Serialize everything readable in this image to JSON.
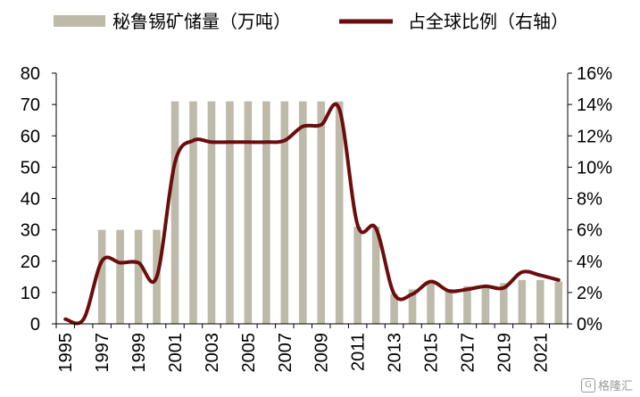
{
  "chart_data": {
    "type": "bar+line",
    "legend": {
      "position": "top",
      "bar_label": "秘鲁锡矿储量（万吨）",
      "line_label": "占全球比例（右轴）"
    },
    "x": [
      1995,
      1996,
      1997,
      1998,
      1999,
      2000,
      2001,
      2002,
      2003,
      2004,
      2005,
      2006,
      2007,
      2008,
      2009,
      2010,
      2011,
      2012,
      2013,
      2014,
      2015,
      2016,
      2017,
      2018,
      2019,
      2020,
      2021,
      2022
    ],
    "x_tick_labels": [
      "1995",
      "1997",
      "1999",
      "2001",
      "2003",
      "2005",
      "2007",
      "2009",
      "2011",
      "2013",
      "2015",
      "2017",
      "2019",
      "2021"
    ],
    "series": [
      {
        "name": "秘鲁锡矿储量（万吨）",
        "type": "bar",
        "axis": "left",
        "values": [
          null,
          null,
          30,
          30,
          30,
          30,
          71,
          71,
          71,
          71,
          71,
          71,
          71,
          71,
          71,
          71,
          31,
          31,
          9.5,
          11,
          13,
          11,
          12,
          12,
          13,
          14,
          14,
          13.5
        ]
      },
      {
        "name": "占全球比例（右轴）",
        "type": "line",
        "axis": "right",
        "values": [
          0.3,
          0.3,
          4.0,
          3.9,
          3.9,
          3.0,
          10.3,
          11.7,
          11.6,
          11.6,
          11.6,
          11.6,
          11.7,
          12.6,
          12.7,
          13.7,
          6.3,
          6.1,
          1.9,
          1.9,
          2.7,
          2.1,
          2.2,
          2.4,
          2.3,
          3.3,
          3.1,
          2.8
        ]
      }
    ],
    "left_axis": {
      "ylim": [
        0,
        80
      ],
      "ticks": [
        "0",
        "10",
        "20",
        "30",
        "40",
        "50",
        "60",
        "70",
        "80"
      ]
    },
    "right_axis": {
      "ylim": [
        0,
        16
      ],
      "ticks": [
        "0%",
        "2%",
        "4%",
        "6%",
        "8%",
        "10%",
        "12%",
        "14%",
        "16%"
      ]
    },
    "grid": false,
    "colors": {
      "bar": "#bdbaa9",
      "line": "#6b0d0d"
    }
  },
  "watermark": {
    "icon": "G",
    "text": "格隆汇"
  }
}
